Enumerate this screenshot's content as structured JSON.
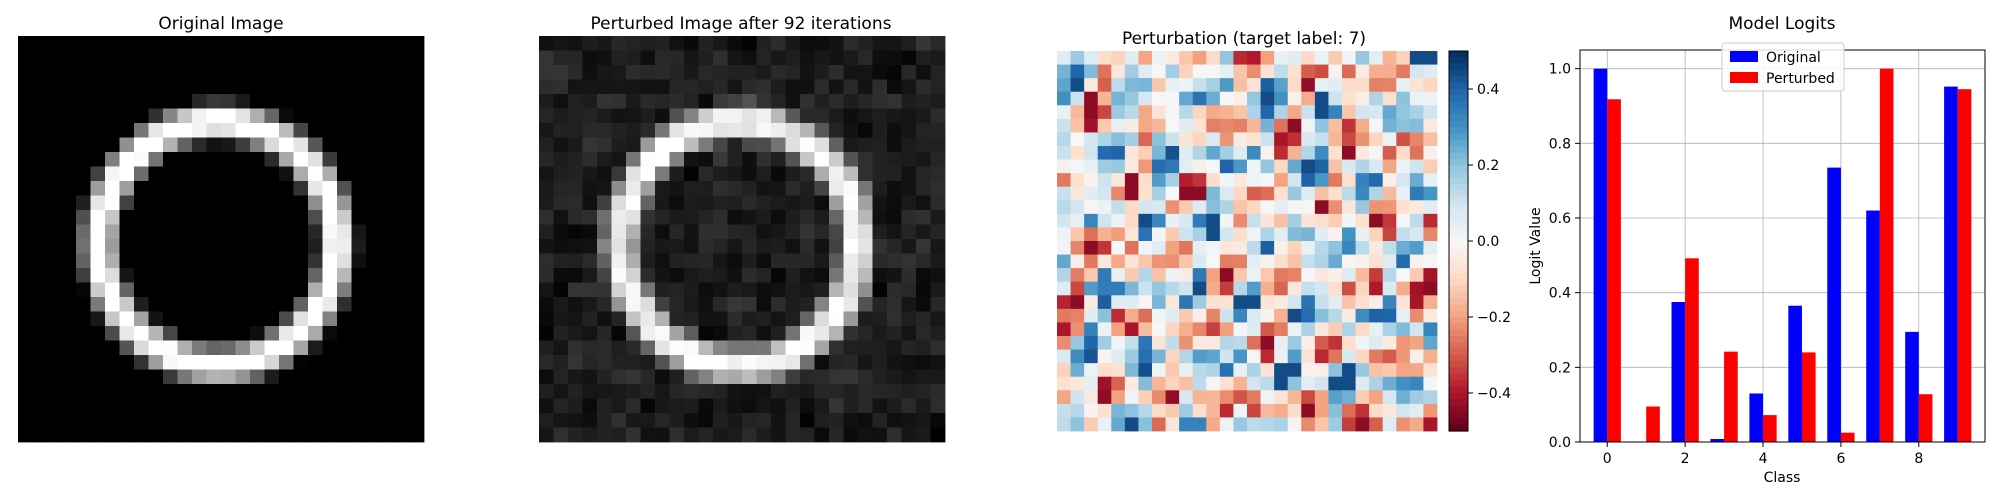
{
  "chart_data": [
    {
      "type": "heatmap",
      "title": "Original Image",
      "colormap": "gray",
      "grid_size": 28,
      "value_range": [
        0,
        1
      ]
    },
    {
      "type": "heatmap",
      "title": "Perturbed Image after 92 iterations",
      "colormap": "gray",
      "grid_size": 28,
      "value_range": [
        0,
        1
      ]
    },
    {
      "type": "heatmap",
      "title": "Perturbation (target label: 7)",
      "colormap": "RdBu",
      "grid_size": 28,
      "value_range": [
        -0.5,
        0.5
      ],
      "colorbar_ticks": [
        0.4,
        0.2,
        0.0,
        -0.2,
        -0.4
      ],
      "colorbar_tick_labels": [
        "0.4",
        "0.2",
        "0.0",
        "−0.2",
        "−0.4"
      ]
    },
    {
      "type": "bar",
      "title": "Model Logits",
      "xlabel": "Class",
      "ylabel": "Logit Value",
      "categories": [
        0,
        1,
        2,
        3,
        4,
        5,
        6,
        7,
        8,
        9
      ],
      "xticks": [
        "0",
        "2",
        "4",
        "6",
        "8"
      ],
      "xtick_values": [
        0,
        2,
        4,
        6,
        8
      ],
      "ylim": [
        0,
        1.05
      ],
      "yticks": [
        "0.0",
        "0.2",
        "0.4",
        "0.6",
        "0.8",
        "1.0"
      ],
      "ytick_values": [
        0,
        0.2,
        0.4,
        0.6,
        0.8,
        1.0
      ],
      "grid": true,
      "legend_position": "top-center",
      "series": [
        {
          "name": "Original",
          "color": "#0000ff",
          "values": [
            1.0,
            0.0,
            0.375,
            0.008,
            0.13,
            0.365,
            0.735,
            0.62,
            0.295,
            0.952
          ]
        },
        {
          "name": "Perturbed",
          "color": "#ff0000",
          "values": [
            0.918,
            0.095,
            0.492,
            0.242,
            0.072,
            0.24,
            0.025,
            1.0,
            0.128,
            0.945
          ]
        }
      ]
    }
  ]
}
